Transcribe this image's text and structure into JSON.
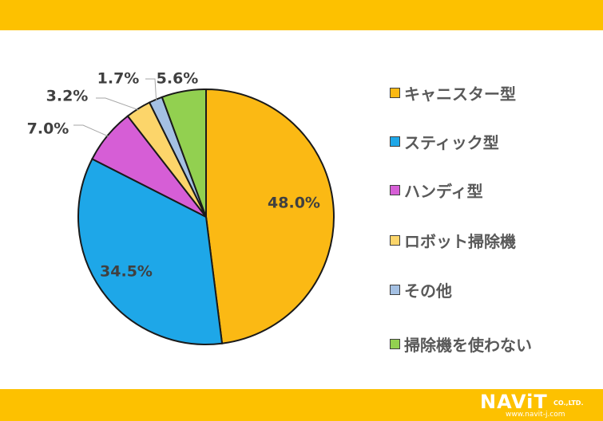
{
  "chart_data": {
    "type": "pie",
    "categories": [
      "キャニスター型",
      "スティック型",
      "ハンディ型",
      "ロボット掃除機",
      "その他",
      "掃除機を使わない"
    ],
    "values": [
      48.0,
      34.5,
      7.0,
      3.2,
      1.7,
      5.6
    ],
    "value_labels": [
      "48.0%",
      "34.5%",
      "7.0%",
      "3.2%",
      "1.7%",
      "5.6%"
    ],
    "colors": [
      "#fbb914",
      "#1ea7e8",
      "#d65ed6",
      "#fcd56a",
      "#a4c0e3",
      "#92d050"
    ],
    "start": "12 o'clock",
    "direction": "clockwise",
    "legend_position": "right"
  },
  "logo": {
    "name": "NAViT",
    "suffix": "CO.,LTD.",
    "url": "www.navit-j.com"
  }
}
